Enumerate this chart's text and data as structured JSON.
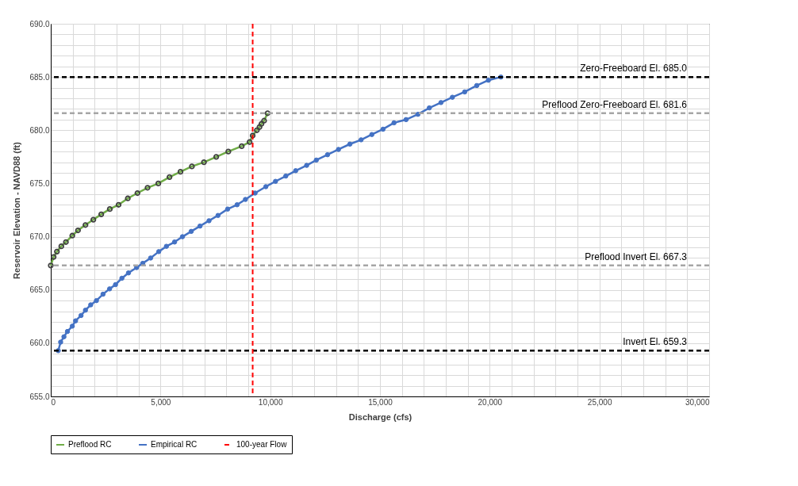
{
  "chart_data": {
    "type": "line",
    "xlabel": "Discharge (cfs)",
    "ylabel": "Reservoir Elevation - NAVD88 (ft)",
    "xlim": [
      0,
      30000
    ],
    "ylim": [
      655,
      690
    ],
    "xticks": [
      {
        "value": 0,
        "label": "0"
      },
      {
        "value": 1000,
        "label": null
      },
      {
        "value": 2000,
        "label": null
      },
      {
        "value": 3000,
        "label": null
      },
      {
        "value": 4000,
        "label": null
      },
      {
        "value": 5000,
        "label": "5,000"
      },
      {
        "value": 6000,
        "label": null
      },
      {
        "value": 7000,
        "label": null
      },
      {
        "value": 8000,
        "label": null
      },
      {
        "value": 9000,
        "label": null
      },
      {
        "value": 10000,
        "label": "10,000"
      },
      {
        "value": 11000,
        "label": null
      },
      {
        "value": 12000,
        "label": null
      },
      {
        "value": 13000,
        "label": null
      },
      {
        "value": 14000,
        "label": null
      },
      {
        "value": 15000,
        "label": "15,000"
      },
      {
        "value": 16000,
        "label": null
      },
      {
        "value": 17000,
        "label": null
      },
      {
        "value": 18000,
        "label": null
      },
      {
        "value": 19000,
        "label": null
      },
      {
        "value": 20000,
        "label": "20,000"
      },
      {
        "value": 21000,
        "label": null
      },
      {
        "value": 22000,
        "label": null
      },
      {
        "value": 23000,
        "label": null
      },
      {
        "value": 24000,
        "label": null
      },
      {
        "value": 25000,
        "label": "25,000"
      },
      {
        "value": 26000,
        "label": null
      },
      {
        "value": 27000,
        "label": null
      },
      {
        "value": 28000,
        "label": null
      },
      {
        "value": 29000,
        "label": null
      },
      {
        "value": 30000,
        "label": "30,000"
      }
    ],
    "yticks": [
      {
        "value": 655,
        "label": "655.0"
      },
      {
        "value": 656,
        "label": null
      },
      {
        "value": 657,
        "label": null
      },
      {
        "value": 658,
        "label": null
      },
      {
        "value": 659,
        "label": null
      },
      {
        "value": 660,
        "label": "660.0"
      },
      {
        "value": 661,
        "label": null
      },
      {
        "value": 662,
        "label": null
      },
      {
        "value": 663,
        "label": null
      },
      {
        "value": 664,
        "label": null
      },
      {
        "value": 665,
        "label": "665.0"
      },
      {
        "value": 666,
        "label": null
      },
      {
        "value": 667,
        "label": null
      },
      {
        "value": 668,
        "label": null
      },
      {
        "value": 669,
        "label": null
      },
      {
        "value": 670,
        "label": "670.0"
      },
      {
        "value": 671,
        "label": null
      },
      {
        "value": 672,
        "label": null
      },
      {
        "value": 673,
        "label": null
      },
      {
        "value": 674,
        "label": null
      },
      {
        "value": 675,
        "label": "675.0"
      },
      {
        "value": 676,
        "label": null
      },
      {
        "value": 677,
        "label": null
      },
      {
        "value": 678,
        "label": null
      },
      {
        "value": 679,
        "label": null
      },
      {
        "value": 680,
        "label": "680.0"
      },
      {
        "value": 681,
        "label": null
      },
      {
        "value": 682,
        "label": null
      },
      {
        "value": 683,
        "label": null
      },
      {
        "value": 684,
        "label": null
      },
      {
        "value": 685,
        "label": "685.0"
      },
      {
        "value": 686,
        "label": null
      },
      {
        "value": 687,
        "label": null
      },
      {
        "value": 688,
        "label": null
      },
      {
        "value": 689,
        "label": null
      },
      {
        "value": 690,
        "label": "690.0"
      }
    ],
    "grid": true,
    "legend": "bottom",
    "marker": "circle",
    "line_style": "solid",
    "series": [
      {
        "name": "Preflood RC",
        "color": "#70ad47",
        "x": [
          0,
          130,
          280,
          480,
          690,
          980,
          1240,
          1580,
          1940,
          2300,
          2690,
          3090,
          3510,
          3950,
          4410,
          4900,
          5410,
          5910,
          6430,
          6980,
          7540,
          8090,
          8700,
          9060,
          9200,
          9390,
          9510,
          9600,
          9720,
          9880
        ],
        "values": [
          667.3,
          668.1,
          668.6,
          669.1,
          669.5,
          670.1,
          670.6,
          671.1,
          671.6,
          672.1,
          672.6,
          673.0,
          673.6,
          674.1,
          674.6,
          675.0,
          675.6,
          676.1,
          676.6,
          677.0,
          677.5,
          678.0,
          678.5,
          678.9,
          679.5,
          680.0,
          680.3,
          680.6,
          680.9,
          681.6
        ]
      },
      {
        "name": "Empirical RC",
        "color": "#4472c4",
        "x": [
          340,
          450,
          600,
          760,
          980,
          1130,
          1380,
          1580,
          1820,
          2080,
          2380,
          2680,
          2950,
          3240,
          3540,
          3910,
          4190,
          4550,
          4920,
          5270,
          5640,
          6000,
          6400,
          6800,
          7210,
          7620,
          8060,
          8490,
          8870,
          9310,
          9800,
          10240,
          10710,
          11160,
          11660,
          12100,
          12610,
          13110,
          13630,
          14140,
          14630,
          15140,
          15640,
          16190,
          16730,
          17250,
          17780,
          18300,
          18860,
          19410,
          19940,
          20510
        ],
        "values": [
          659.3,
          660.1,
          660.6,
          661.1,
          661.6,
          662.1,
          662.6,
          663.1,
          663.6,
          664.0,
          664.6,
          665.1,
          665.5,
          666.1,
          666.6,
          667.1,
          667.5,
          668.0,
          668.6,
          669.1,
          669.5,
          670.0,
          670.5,
          671.0,
          671.5,
          672.0,
          672.6,
          673.0,
          673.5,
          674.1,
          674.7,
          675.2,
          675.7,
          676.2,
          676.7,
          677.2,
          677.7,
          678.2,
          678.7,
          679.1,
          679.6,
          680.1,
          680.7,
          681.0,
          681.5,
          682.1,
          682.6,
          683.1,
          683.6,
          684.2,
          684.7,
          685.0
        ]
      }
    ],
    "ref_lines": [
      {
        "axis": "x",
        "value": 9200,
        "label": "100-year Flow",
        "color": "#ff0000",
        "line_style": "dashed"
      },
      {
        "axis": "y",
        "value": 685.0,
        "label": "Zero-Freeboard El. 685.0",
        "color": "#000000",
        "line_style": "dashed"
      },
      {
        "axis": "y",
        "value": 681.6,
        "label": "Preflood Zero-Freeboard El. 681.6",
        "color": "#a6a6a6",
        "line_style": "dashed"
      },
      {
        "axis": "y",
        "value": 667.3,
        "label": "Preflood Invert El. 667.3",
        "color": "#a6a6a6",
        "line_style": "dashed"
      },
      {
        "axis": "y",
        "value": 659.3,
        "label": "Invert El. 659.3",
        "color": "#000000",
        "line_style": "dashed"
      }
    ]
  }
}
